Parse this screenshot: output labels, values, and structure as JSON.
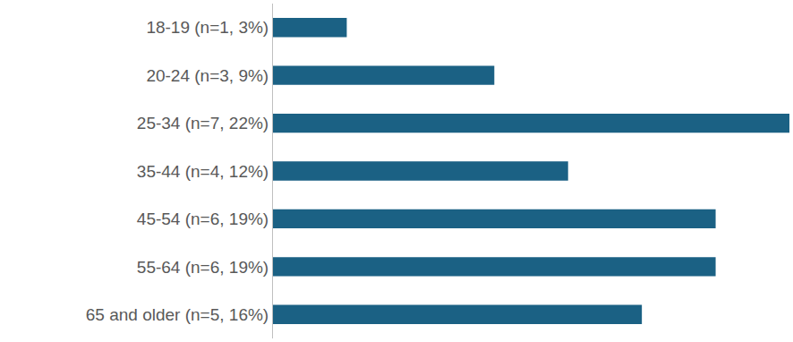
{
  "chart_data": {
    "type": "bar",
    "orientation": "horizontal",
    "categories": [
      "18-19 (n=1, 3%)",
      "20-24 (n=3, 9%)",
      "25-34 (n=7, 22%)",
      "35-44 (n=4, 12%)",
      "45-54 (n=6, 19%)",
      "55-64 (n=6, 19%)",
      "65 and older (n=5, 16%)"
    ],
    "values": [
      1,
      3,
      7,
      4,
      6,
      6,
      5
    ],
    "color": "#1b6184",
    "xlim": [
      0,
      7
    ],
    "grid": false,
    "tick_labels": "y"
  }
}
